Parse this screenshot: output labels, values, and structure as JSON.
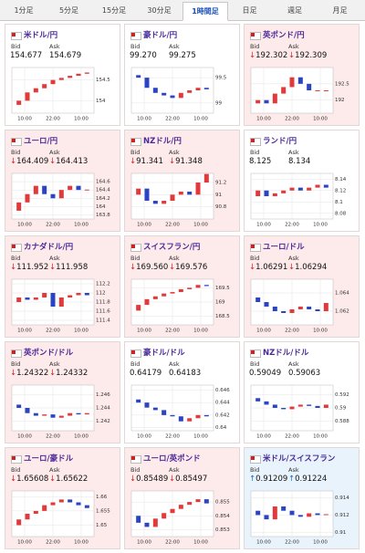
{
  "tabs": [
    "1分足",
    "5分足",
    "15分足",
    "30分足",
    "1時間足",
    "日足",
    "週足",
    "月足"
  ],
  "active_tab": 4,
  "bid_label": "Bid",
  "ask_label": "Ask",
  "x_labels": [
    "10:00",
    "22:00",
    "10:00"
  ],
  "cards": [
    {
      "name": "米ドル/円",
      "bid": "154.677",
      "ask": "154.679",
      "background": "#ffffff",
      "chart": {
        "ylim": [
          153.7,
          154.8
        ],
        "yticks": [
          154.5,
          154
        ],
        "values": [
          153.9,
          154.0,
          154.2,
          154.3,
          154.4,
          154.5,
          154.55,
          154.6,
          154.65,
          154.68
        ]
      }
    },
    {
      "name": "豪ドル/円",
      "bid": "99.270",
      "ask": "99.275",
      "background": "#ffffff",
      "chart": {
        "ylim": [
          98.8,
          99.7
        ],
        "yticks": [
          99.5,
          99
        ],
        "values": [
          99.55,
          99.5,
          99.3,
          99.2,
          99.15,
          99.1,
          99.2,
          99.25,
          99.3,
          99.27
        ]
      }
    },
    {
      "name": "英ポンド/円",
      "arrow": "↓",
      "bid": "192.302",
      "ask": "192.309",
      "background": "#fdeaea",
      "chart": {
        "ylim": [
          191.6,
          193.0
        ],
        "yticks": [
          192.5,
          192
        ],
        "values": [
          191.9,
          192.0,
          191.9,
          192.2,
          192.4,
          192.7,
          192.5,
          192.3,
          192.3,
          192.3
        ]
      }
    },
    {
      "name": "ユーロ/円",
      "arrow": "↓",
      "bid": "164.409",
      "ask": "164.413",
      "background": "#fdeaea",
      "chart": {
        "ylim": [
          163.7,
          164.8
        ],
        "yticks": [
          164.6,
          164.4,
          164.2,
          164,
          163.8
        ],
        "values": [
          163.9,
          164.1,
          164.3,
          164.5,
          164.3,
          164.2,
          164.4,
          164.5,
          164.4,
          164.41
        ]
      }
    },
    {
      "name": "NZドル/円",
      "arrow": "↓",
      "bid": "91.341",
      "ask": "91.348",
      "background": "#fdeaea",
      "chart": {
        "ylim": [
          90.6,
          91.35
        ],
        "yticks": [
          91.2,
          91,
          90.8
        ],
        "values": [
          91.0,
          91.1,
          90.9,
          90.85,
          90.9,
          91.0,
          91.05,
          91.0,
          91.2,
          91.34
        ]
      }
    },
    {
      "name": "ランド/円",
      "bid": "8.125",
      "ask": "8.134",
      "background": "#ffffff",
      "chart": {
        "ylim": [
          8.07,
          8.15
        ],
        "yticks": [
          8.14,
          8.12,
          8.1,
          8.08
        ],
        "values": [
          8.11,
          8.12,
          8.11,
          8.115,
          8.12,
          8.125,
          8.12,
          8.125,
          8.13,
          8.125
        ]
      }
    },
    {
      "name": "カナダドル/円",
      "arrow": "↓",
      "bid": "111.952",
      "ask": "111.958",
      "background": "#fdeaea",
      "chart": {
        "ylim": [
          111.3,
          112.3
        ],
        "yticks": [
          112.2,
          112,
          111.8,
          111.6,
          111.4
        ],
        "values": [
          111.8,
          111.9,
          111.85,
          111.9,
          112.0,
          111.7,
          111.9,
          111.95,
          112.0,
          111.95
        ]
      }
    },
    {
      "name": "スイスフラン/円",
      "arrow": "↓",
      "bid": "169.560",
      "ask": "169.576",
      "background": "#fdeaea",
      "chart": {
        "ylim": [
          168.2,
          169.8
        ],
        "yticks": [
          169.5,
          169,
          168.5
        ],
        "values": [
          168.7,
          168.9,
          169.1,
          169.2,
          169.3,
          169.35,
          169.45,
          169.5,
          169.6,
          169.56
        ]
      }
    },
    {
      "name": "ユーロ/ドル",
      "arrow": "↓",
      "bid": "1.06291",
      "ask": "1.06294",
      "background": "#fdeaea",
      "chart": {
        "ylim": [
          1.0605,
          1.0655
        ],
        "yticks": [
          1.064,
          1.062
        ],
        "values": [
          1.0635,
          1.063,
          1.0625,
          1.062,
          1.0618,
          1.0622,
          1.0625,
          1.0622,
          1.062,
          1.0629
        ]
      }
    },
    {
      "name": "英ポンド/ドル",
      "arrow": "↓",
      "bid": "1.24322",
      "ask": "1.24332",
      "background": "#fdeaea",
      "chart": {
        "ylim": [
          1.2405,
          1.2475
        ],
        "yticks": [
          1.246,
          1.244,
          1.242
        ],
        "values": [
          1.2445,
          1.244,
          1.2432,
          1.2428,
          1.243,
          1.2425,
          1.2428,
          1.2432,
          1.243,
          1.2432
        ]
      }
    },
    {
      "name": "豪ドル/ドル",
      "bid": "0.64179",
      "ask": "0.64183",
      "background": "#ffffff",
      "chart": {
        "ylim": [
          0.6395,
          0.6468
        ],
        "yticks": [
          0.646,
          0.644,
          0.642,
          0.64
        ],
        "values": [
          0.6445,
          0.644,
          0.6432,
          0.6428,
          0.642,
          0.6418,
          0.641,
          0.6415,
          0.642,
          0.6418
        ]
      }
    },
    {
      "name": "NZドル/ドル",
      "bid": "0.59049",
      "ask": "0.59063",
      "background": "#ffffff",
      "chart": {
        "ylim": [
          0.5865,
          0.5935
        ],
        "yticks": [
          0.592,
          0.59,
          0.588
        ],
        "values": [
          0.5915,
          0.591,
          0.5905,
          0.59,
          0.5898,
          0.5902,
          0.5905,
          0.5903,
          0.59,
          0.5905
        ]
      }
    },
    {
      "name": "ユーロ/豪ドル",
      "arrow": "↓",
      "bid": "1.65608",
      "ask": "1.65622",
      "background": "#fdeaea",
      "chart": {
        "ylim": [
          1.646,
          1.662
        ],
        "yticks": [
          1.66,
          1.655,
          1.65
        ],
        "values": [
          1.65,
          1.652,
          1.654,
          1.655,
          1.657,
          1.658,
          1.659,
          1.658,
          1.657,
          1.656
        ]
      }
    },
    {
      "name": "ユーロ/英ポンド",
      "arrow": "↓",
      "bid": "0.85489",
      "ask": "0.85497",
      "background": "#fdeaea",
      "chart": {
        "ylim": [
          0.8525,
          0.8558
        ],
        "yticks": [
          0.855,
          0.854,
          0.853
        ],
        "values": [
          0.854,
          0.8535,
          0.8532,
          0.8538,
          0.8542,
          0.8545,
          0.8548,
          0.855,
          0.8552,
          0.8549
        ]
      }
    },
    {
      "name": "米ドル/スイスフラン",
      "arrow": "↑",
      "bid": "0.91209",
      "ask": "0.91224",
      "background": "#e9f3fc",
      "chart": {
        "ylim": [
          0.9095,
          0.9148
        ],
        "yticks": [
          0.914,
          0.912,
          0.91
        ],
        "values": [
          0.9125,
          0.912,
          0.9115,
          0.913,
          0.9125,
          0.912,
          0.9118,
          0.9122,
          0.912,
          0.9121
        ]
      }
    }
  ]
}
